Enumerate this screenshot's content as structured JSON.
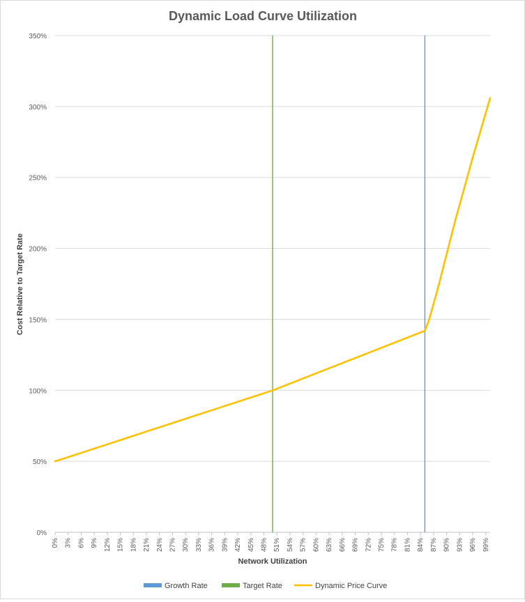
{
  "chart_data": {
    "type": "line",
    "title": "Dynamic Load Curve Utilization",
    "xlabel": "Network Utilization",
    "ylabel": "Cost Relative to Target Rate",
    "x_unit": "%",
    "xlim": [
      0,
      100
    ],
    "ylim": [
      0,
      350
    ],
    "y_ticks": [
      "0%",
      "50%",
      "100%",
      "150%",
      "200%",
      "250%",
      "300%",
      "350%"
    ],
    "x_tick_labels": [
      "0%",
      "3%",
      "6%",
      "9%",
      "12%",
      "15%",
      "18%",
      "21%",
      "24%",
      "27%",
      "30%",
      "33%",
      "36%",
      "39%",
      "42%",
      "45%",
      "48%",
      "51%",
      "54%",
      "57%",
      "60%",
      "63%",
      "66%",
      "69%",
      "72%",
      "75%",
      "78%",
      "81%",
      "84%",
      "87%",
      "90%",
      "93%",
      "96%",
      "99%"
    ],
    "grid": true,
    "legend_position": "bottom",
    "series": [
      {
        "name": "Growth Rate",
        "color": "#5b9bd5",
        "kind": "vertical-line",
        "x": 85
      },
      {
        "name": "Target Rate",
        "color": "#70ad47",
        "kind": "vertical-line",
        "x": 50
      },
      {
        "name": "Dynamic Price Curve",
        "color": "#ffc000",
        "kind": "line",
        "x": [
          0,
          5,
          10,
          15,
          20,
          25,
          30,
          35,
          40,
          45,
          50,
          55,
          60,
          65,
          70,
          75,
          80,
          85,
          86,
          88,
          90,
          92,
          94,
          96,
          98,
          100
        ],
        "y": [
          50,
          55,
          60,
          65,
          70,
          75,
          80,
          85,
          90,
          95,
          100,
          106,
          112,
          118,
          124,
          130,
          136,
          142,
          150,
          172,
          196,
          220,
          242,
          264,
          285,
          306
        ]
      }
    ]
  }
}
